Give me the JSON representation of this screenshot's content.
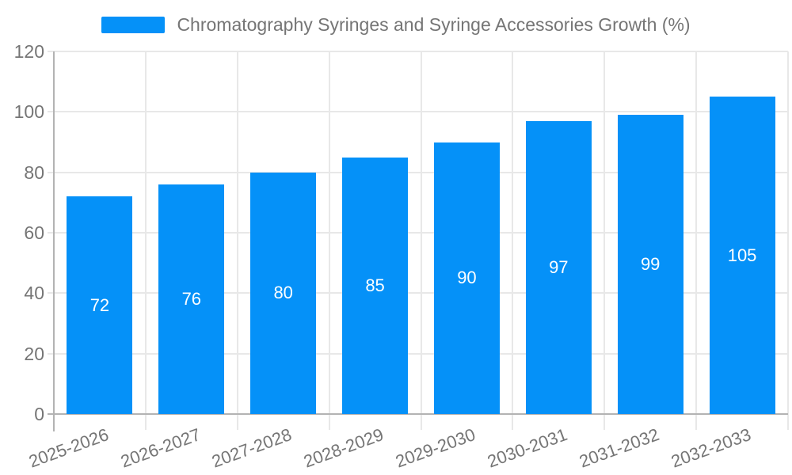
{
  "chart_data": {
    "type": "bar",
    "title": "Chromatography Syringes and Syringe Accessories Growth (%)",
    "categories": [
      "2025-2026",
      "2026-2027",
      "2027-2028",
      "2028-2029",
      "2029-2030",
      "2030-2031",
      "2031-2032",
      "2032-2033"
    ],
    "values": [
      72,
      76,
      80,
      85,
      90,
      97,
      99,
      105
    ],
    "xlabel": "",
    "ylabel": "",
    "ylim": [
      0,
      120
    ],
    "yticks": [
      0,
      20,
      40,
      60,
      80,
      100,
      120
    ],
    "grid": true,
    "legend_position": "top-center",
    "legend_entries": [
      "Chromatography Syringes and Syringe Accessories Growth (%)"
    ],
    "bar_color": "#0591f8",
    "value_label_color": "#ffffff",
    "grid_color": "#e8e8e8",
    "axis_color": "#b3b3b3",
    "text_color": "#757575"
  }
}
